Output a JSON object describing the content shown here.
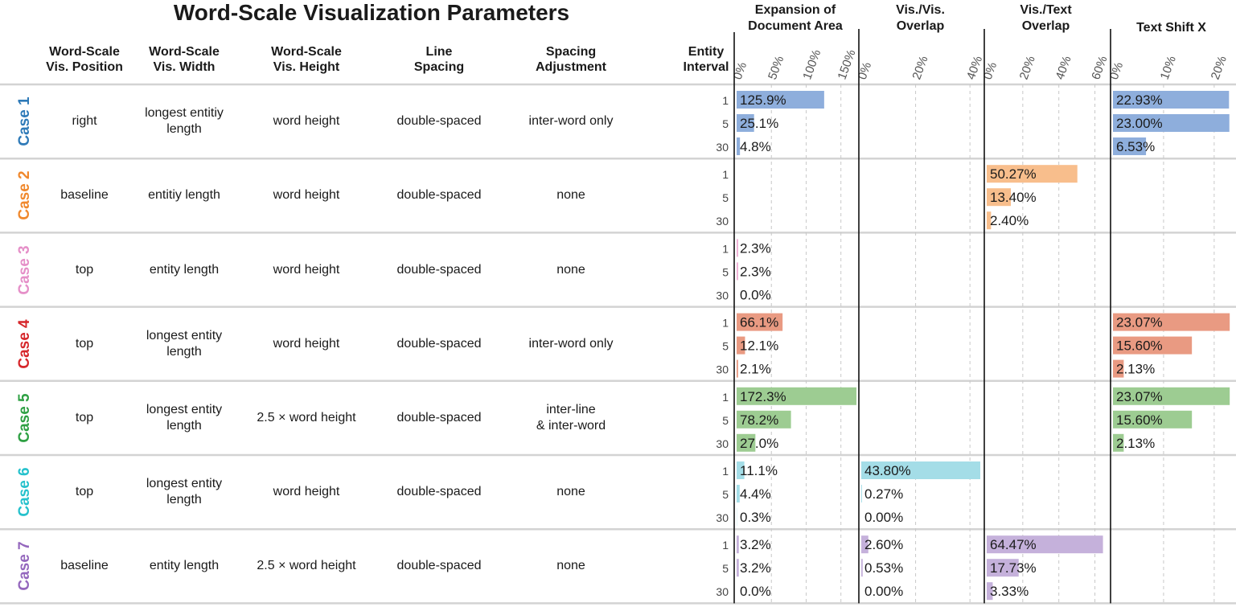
{
  "title": "Word-Scale Visualization Parameters",
  "columns": {
    "position": "Word-Scale\nVis. Position",
    "width": "Word-Scale\nVis. Width",
    "height": "Word-Scale\nVis. Height",
    "line_spacing": "Line\nSpacing",
    "spacing_adjustment": "Spacing\nAdjustment",
    "entity_interval": "Entity\nInterval"
  },
  "cases": [
    {
      "label": "Case 1",
      "color": "#2e7ab8",
      "position": "right",
      "width": "longest entitiy\nlength",
      "height": "word height",
      "line_spacing": "double-spaced",
      "spacing_adjustment": "inter-word only"
    },
    {
      "label": "Case 2",
      "color": "#f0882c",
      "position": "baseline",
      "width": "entitiy length",
      "height": "word height",
      "line_spacing": "double-spaced",
      "spacing_adjustment": "none"
    },
    {
      "label": "Case 3",
      "color": "#e58fc8",
      "position": "top",
      "width": "entity length",
      "height": "word height",
      "line_spacing": "double-spaced",
      "spacing_adjustment": "none"
    },
    {
      "label": "Case 4",
      "color": "#d6262a",
      "position": "top",
      "width": "longest entity\nlength",
      "height": "word height",
      "line_spacing": "double-spaced",
      "spacing_adjustment": "inter-word only"
    },
    {
      "label": "Case 5",
      "color": "#2ea043",
      "position": "top",
      "width": "longest entity\nlength",
      "height": "2.5 × word height",
      "line_spacing": "double-spaced",
      "spacing_adjustment": "inter-line\n& inter-word"
    },
    {
      "label": "Case 6",
      "color": "#25c1cc",
      "position": "top",
      "width": "longest entity\nlength",
      "height": "word height",
      "line_spacing": "double-spaced",
      "spacing_adjustment": "none"
    },
    {
      "label": "Case 7",
      "color": "#9467bd",
      "position": "baseline",
      "width": "entity length",
      "height": "2.5 × word height",
      "line_spacing": "double-spaced",
      "spacing_adjustment": "none"
    }
  ],
  "chart_data": {
    "type": "bar",
    "orientation": "horizontal",
    "title": "Word-Scale Visualization Parameters",
    "intervals": [
      "1",
      "5",
      "30"
    ],
    "bar_colors": [
      "#8eaedc",
      "#f8be8c",
      "#f0b3d8",
      "#e99a82",
      "#9dcc92",
      "#a4dde7",
      "#c5b1db"
    ],
    "panels": [
      {
        "name": "Expansion of\nDocument Area",
        "ticks": [
          "0%",
          "50%",
          "100%",
          "150%"
        ],
        "tick_values": [
          0,
          50,
          100,
          150
        ],
        "max": 170,
        "values": [
          [
            125.9,
            25.1,
            4.8
          ],
          null,
          [
            2.3,
            2.3,
            0.0
          ],
          [
            66.1,
            12.1,
            2.1
          ],
          [
            172.3,
            78.2,
            27.0
          ],
          [
            11.1,
            4.4,
            0.3
          ],
          [
            3.2,
            3.2,
            0.0
          ]
        ],
        "labels": [
          [
            "125.9%",
            "25.1%",
            "4.8%"
          ],
          null,
          [
            "2.3%",
            "2.3%",
            "0.0%"
          ],
          [
            "66.1%",
            "12.1%",
            "2.1%"
          ],
          [
            "172.3%",
            "78.2%",
            "27.0%"
          ],
          [
            "11.1%",
            "4.4%",
            "0.3%"
          ],
          [
            "3.2%",
            "3.2%",
            "0.0%"
          ]
        ]
      },
      {
        "name": "Vis./Vis.\nOverlap",
        "ticks": [
          "0%",
          "20%",
          "40%"
        ],
        "tick_values": [
          0,
          20,
          40
        ],
        "max": 43.8,
        "values": [
          null,
          null,
          null,
          null,
          null,
          [
            43.8,
            0.27,
            0.0
          ],
          [
            2.6,
            0.53,
            0.0
          ]
        ],
        "labels": [
          null,
          null,
          null,
          null,
          null,
          [
            "43.80%",
            "0.27%",
            "0.00%"
          ],
          [
            "2.60%",
            "0.53%",
            "0.00%"
          ]
        ]
      },
      {
        "name": "Vis./Text\nOverlap",
        "ticks": [
          "0%",
          "20%",
          "40%",
          "60%"
        ],
        "tick_values": [
          0,
          20,
          40,
          60
        ],
        "max": 66,
        "values": [
          null,
          [
            50.27,
            13.4,
            2.4
          ],
          null,
          null,
          null,
          null,
          [
            64.47,
            17.73,
            3.33
          ]
        ],
        "labels": [
          null,
          [
            "50.27%",
            "13.40%",
            "2.40%"
          ],
          null,
          null,
          null,
          null,
          [
            "64.47%",
            "17.73%",
            "3.33%"
          ]
        ]
      },
      {
        "name": "Text Shift X",
        "ticks": [
          "0%",
          "10%",
          "20%"
        ],
        "tick_values": [
          0,
          10,
          20
        ],
        "max": 23.2,
        "values": [
          [
            22.93,
            23.0,
            6.53
          ],
          null,
          null,
          [
            23.07,
            15.6,
            2.13
          ],
          [
            23.07,
            15.6,
            2.13
          ],
          null,
          null
        ],
        "labels": [
          [
            "22.93%",
            "23.00%",
            "6.53%"
          ],
          null,
          null,
          [
            "23.07%",
            "15.60%",
            "2.13%"
          ],
          [
            "23.07%",
            "15.60%",
            "2.13%"
          ],
          null,
          null
        ]
      }
    ]
  }
}
